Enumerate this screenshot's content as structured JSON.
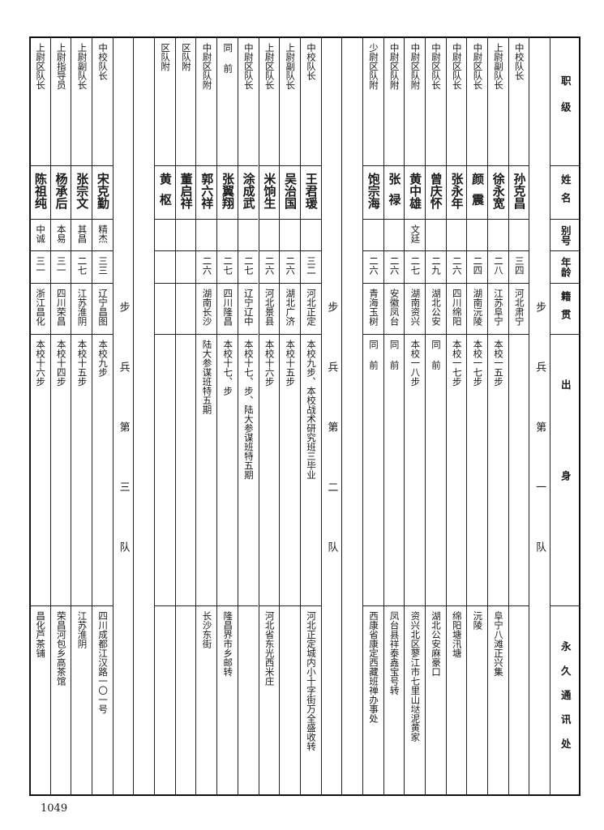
{
  "header": {
    "rank": "职级",
    "name": "姓名",
    "alias": "别号",
    "age": "年龄",
    "native_place": "籍贯",
    "background": "出身",
    "address": "永久通讯处"
  },
  "groups": [
    {
      "label": "步兵第一队",
      "rows": [
        {
          "rank": "中校队长",
          "name": "孙克昌",
          "alias": "",
          "age": "三四",
          "native_place": "河北肃宁",
          "background": "",
          "address": ""
        },
        {
          "rank": "上尉副队长",
          "name": "徐永宽",
          "alias": "",
          "age": "二八",
          "native_place": "江苏阜宁",
          "background": "本校一五步",
          "address": "阜宁八滩正兴集"
        },
        {
          "rank": "中尉区队长",
          "name": "颜震",
          "alias": "",
          "age": "二四",
          "native_place": "湖南沅陵",
          "background": "本校一七步",
          "address": "沅陵"
        },
        {
          "rank": "中尉区队长",
          "name": "张永年",
          "alias": "",
          "age": "二六",
          "native_place": "四川绵阳",
          "background": "本校一七步",
          "address": "绵阳塘汛塘"
        },
        {
          "rank": "中尉区队长",
          "name": "曾庆怀",
          "alias": "",
          "age": "二九",
          "native_place": "湖北公安",
          "background": "同前",
          "address": "湖北公安麻豪口"
        },
        {
          "rank": "中尉区队附",
          "name": "黄中雄",
          "alias": "文廷",
          "age": "二七",
          "native_place": "湖南资兴",
          "background": "本校一八步",
          "address": "资兴北区蓼江市七里山垯泥黄家"
        },
        {
          "rank": "中尉区队附",
          "name": "张禄",
          "alias": "",
          "age": "二六",
          "native_place": "安徽凤台",
          "background": "同前",
          "address": "凤台县祥泰鑫宝号转"
        },
        {
          "rank": "少尉区队附",
          "name": "饱宗海",
          "alias": "",
          "age": "二六",
          "native_place": "青海玉树",
          "background": "同前",
          "address": "西康省康定西藏班禅办事处"
        }
      ]
    },
    {
      "label": "步兵第二队",
      "rows": [
        {
          "rank": "中校队长",
          "name": "王君瑗",
          "alias": "",
          "age": "三二",
          "native_place": "河北正定",
          "background": "本校九步、本校战术研究班三毕业",
          "address": "河北正定城内小十字街万全盛收转"
        },
        {
          "rank": "上尉副队长",
          "name": "吴治国",
          "alias": "",
          "age": "二六",
          "native_place": "湖北广济",
          "background": "本校十五步",
          "address": ""
        },
        {
          "rank": "上尉区队长",
          "name": "米饷生",
          "alias": "",
          "age": "二六",
          "native_place": "河北景县",
          "background": "本校十六步",
          "address": "河北省东光西米庄"
        },
        {
          "rank": "中尉区队长",
          "name": "涂成武",
          "alias": "",
          "age": "二七",
          "native_place": "辽宁辽中",
          "background": "本校十七、步、陆大参谋班特五期",
          "address": ""
        },
        {
          "rank": "同前",
          "name": "张翼翔",
          "alias": "",
          "age": "二七",
          "native_place": "四川隆昌",
          "background": "本校十七、步",
          "address": "隆昌界市乡邮转"
        },
        {
          "rank": "中尉区队附",
          "name": "郭六祥",
          "alias": "",
          "age": "二六",
          "native_place": "湖南长沙",
          "background": "陆大参谋班特五期",
          "address": "长沙东街"
        },
        {
          "rank": "区队附",
          "name": "董启祥",
          "alias": "",
          "age": "",
          "native_place": "",
          "background": "",
          "address": ""
        },
        {
          "rank": "区队附",
          "name": "黄枢",
          "alias": "",
          "age": "",
          "native_place": "",
          "background": "",
          "address": ""
        }
      ]
    },
    {
      "label": "步兵第三队",
      "rows": [
        {
          "rank": "中校队长",
          "name": "宋克勤",
          "alias": "精杰",
          "age": "三三",
          "native_place": "辽宁昌图",
          "background": "本校九步",
          "address": "四川成都江汉路一〇一号"
        },
        {
          "rank": "上尉副队长",
          "name": "张宗文",
          "alias": "其昌",
          "age": "二七",
          "native_place": "江苏淮阴",
          "background": "本校十五步",
          "address": "江苏淮阴"
        },
        {
          "rank": "上尉指导员",
          "name": "杨承后",
          "alias": "本易",
          "age": "三一",
          "native_place": "四川荣昌",
          "background": "本校十四步",
          "address": "荣昌河包乡高茶馆"
        },
        {
          "rank": "上尉区队长",
          "name": "陈祖纯",
          "alias": "中诚",
          "age": "三一",
          "native_place": "浙江昌化",
          "background": "本校十六步",
          "address": "昌化芦茶铺"
        }
      ]
    }
  ],
  "page_number": "1049"
}
